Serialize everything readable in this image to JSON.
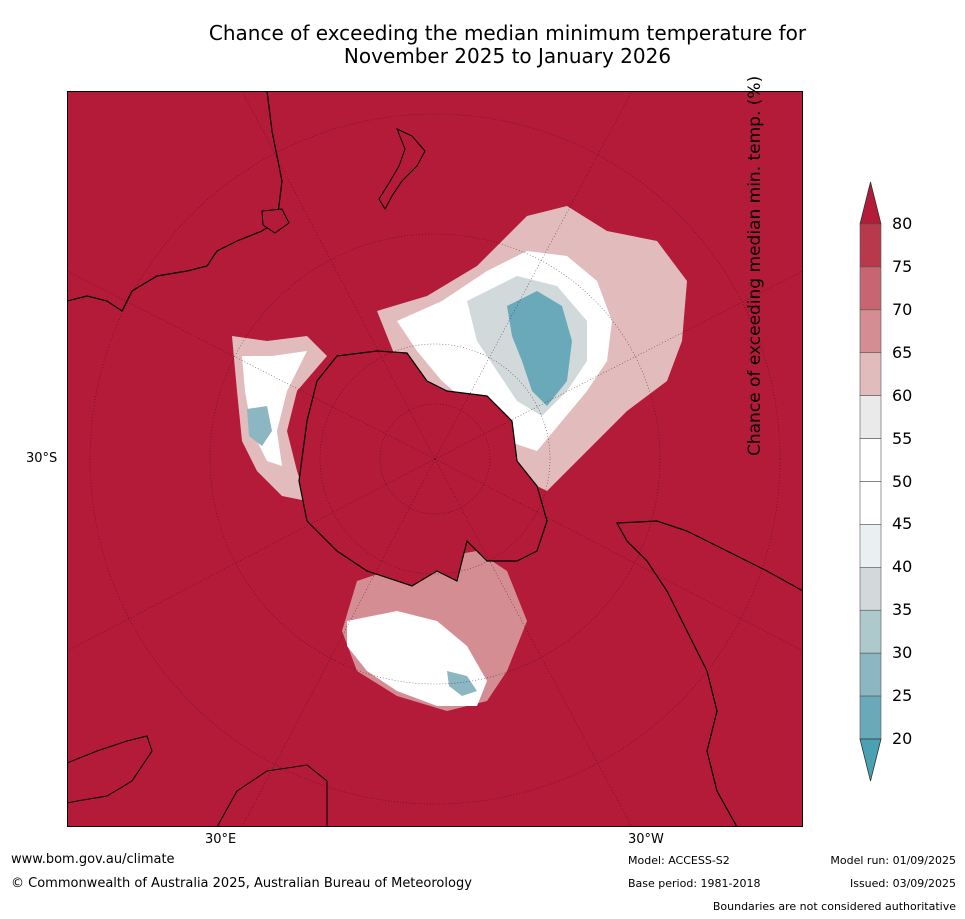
{
  "title": {
    "line1": "Chance of exceeding the median minimum temperature for",
    "line2": "November 2025 to January 2026"
  },
  "map": {
    "projection": "south-polar-stereographic",
    "lat_label": "30°S",
    "lon_labels": {
      "east": "30°E",
      "west": "30°W"
    },
    "ocean_color": "#b31b38"
  },
  "colorbar": {
    "label": "Chance of exceeding median min. temp. (%)",
    "ticks": [
      "80",
      "75",
      "70",
      "65",
      "60",
      "55",
      "50",
      "45",
      "40",
      "35",
      "30",
      "25",
      "20"
    ],
    "bands": [
      {
        "range": "75-80",
        "color": "#b8394c"
      },
      {
        "range": "70-75",
        "color": "#c76570"
      },
      {
        "range": "65-70",
        "color": "#d48d93"
      },
      {
        "range": "60-65",
        "color": "#e2bcbd"
      },
      {
        "range": "55-60",
        "color": "#eaeaea"
      },
      {
        "range": "50-55",
        "color": "#ffffff"
      },
      {
        "range": "45-50",
        "color": "#ffffff"
      },
      {
        "range": "40-45",
        "color": "#eaf0f2"
      },
      {
        "range": "35-40",
        "color": "#d1d9db"
      },
      {
        "range": "30-35",
        "color": "#adc9cc"
      },
      {
        "range": "25-30",
        "color": "#8cb6c2"
      },
      {
        "range": "20-25",
        "color": "#6aa9b9"
      }
    ],
    "top_arrow_color": "#b31b38",
    "bottom_arrow_color": "#4aa1b1"
  },
  "footer": {
    "website": "www.bom.gov.au/climate",
    "copyright": "© Commonwealth of Australia 2025, Australian Bureau of Meteorology",
    "model": "Model: ACCESS-S2",
    "base_period": "Base period: 1981-2018",
    "model_run": "Model run: 01/09/2025",
    "issued": "Issued: 03/09/2025",
    "disclaimer": "Boundaries are not considered authoritative"
  }
}
